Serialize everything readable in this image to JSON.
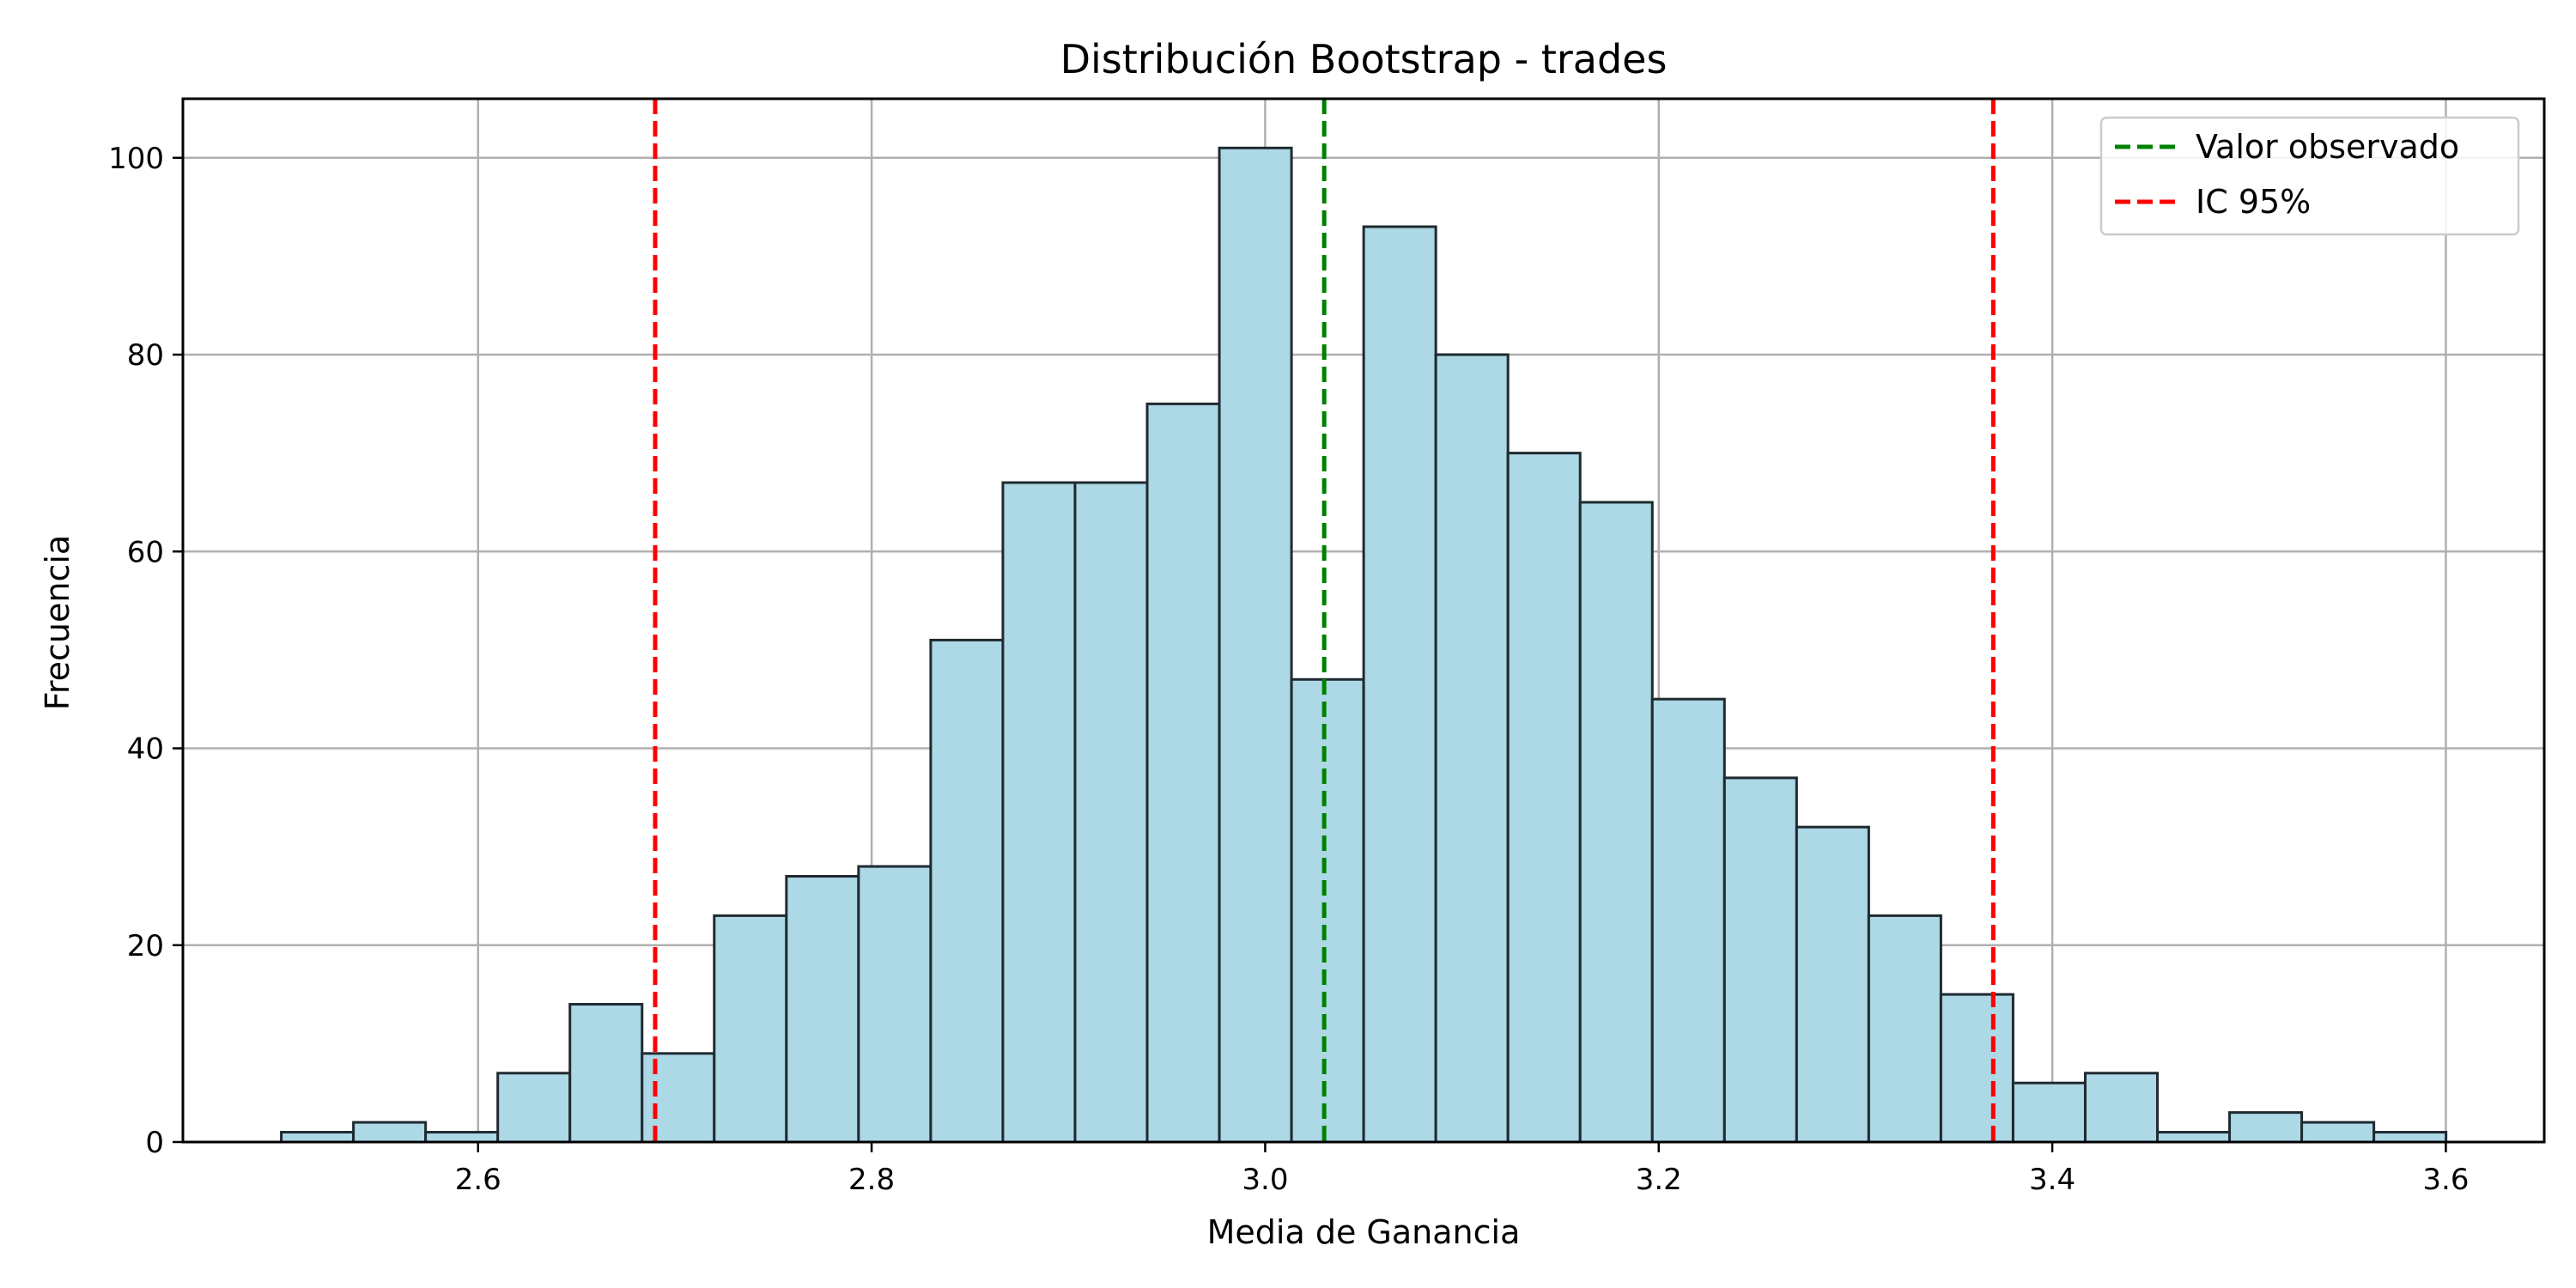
{
  "chart_data": {
    "type": "bar",
    "title": "Distribución Bootstrap - trades",
    "xlabel": "Media de Ganancia",
    "ylabel": "Frecuencia",
    "xlim": [
      2.45,
      3.65
    ],
    "ylim": [
      0,
      106
    ],
    "grid": true,
    "x_ticks": [
      2.6,
      2.8,
      3.0,
      3.2,
      3.4,
      3.6
    ],
    "y_ticks": [
      0,
      20,
      40,
      60,
      80,
      100
    ],
    "x_tick_labels": [
      "2.6",
      "2.8",
      "3.0",
      "3.2",
      "3.4",
      "3.6"
    ],
    "y_tick_labels": [
      "0",
      "20",
      "40",
      "60",
      "80",
      "100"
    ],
    "bin_start": 2.5,
    "bin_width": 0.03667,
    "values": [
      1,
      2,
      1,
      7,
      14,
      9,
      23,
      27,
      28,
      51,
      67,
      67,
      75,
      101,
      47,
      93,
      80,
      70,
      65,
      45,
      37,
      32,
      23,
      15,
      6,
      7,
      1,
      3,
      2,
      1
    ],
    "bar_color": "#add8e6",
    "bar_edge_color": "#1f2a30",
    "vlines": [
      {
        "x": 3.03,
        "color": "#008000",
        "style": "dashed",
        "label": "Valor observado"
      },
      {
        "x": 2.69,
        "color": "#ff0000",
        "style": "dashed",
        "label": "IC 95%"
      },
      {
        "x": 3.37,
        "color": "#ff0000",
        "style": "dashed",
        "label": ""
      }
    ],
    "legend": {
      "position": "top-right",
      "entries": [
        {
          "label": "Valor observado",
          "color": "#008000",
          "style": "dashed"
        },
        {
          "label": "IC 95%",
          "color": "#ff0000",
          "style": "dashed"
        }
      ]
    }
  }
}
